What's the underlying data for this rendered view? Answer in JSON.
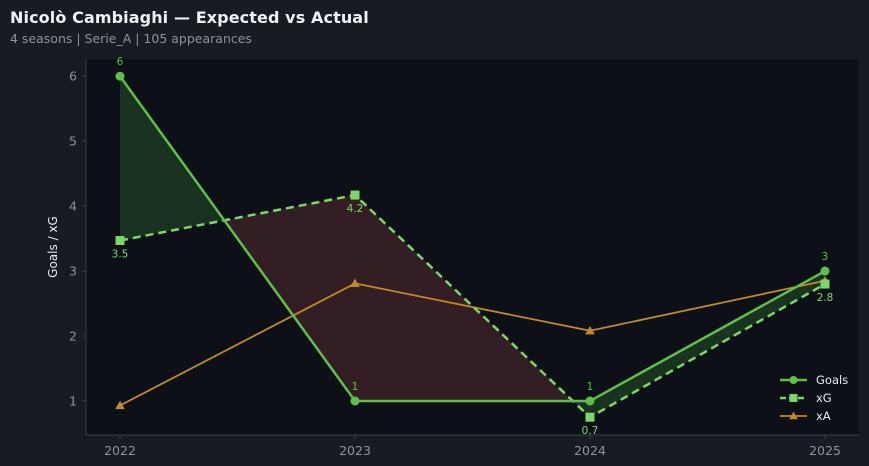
{
  "title": "Nicolò Cambiaghi — Expected vs Actual",
  "subtitle": "4 seasons | Serie_A | 105 appearances",
  "colors": {
    "goals": "#5fbf4a",
    "xg": "#7ed66a",
    "xa": "#c08a2a",
    "over_fill": "#1c3a22",
    "under_fill": "#3a2126",
    "plot_bg": "#0d1117",
    "page_bg": "#171b22"
  },
  "chart_data": {
    "type": "line",
    "x": [
      "2022",
      "2023",
      "2024",
      "2025"
    ],
    "ylabel": "Goals / xG",
    "xlabel": "",
    "ylim": [
      0.5,
      6.25
    ],
    "yticks": [
      1,
      2,
      3,
      4,
      5,
      6
    ],
    "grid": false,
    "legend_position": "bottom-right",
    "series": [
      {
        "name": "Goals",
        "values": [
          6,
          1,
          1,
          3
        ],
        "labels": [
          "6",
          "1",
          "1",
          "3"
        ],
        "marker": "circle",
        "style": "solid"
      },
      {
        "name": "xG",
        "values": [
          3.47,
          4.17,
          0.75,
          2.8
        ],
        "labels": [
          "3.5",
          "4.2",
          "0.7",
          "2.8"
        ],
        "marker": "square",
        "style": "dashed"
      },
      {
        "name": "xA",
        "values": [
          0.93,
          2.81,
          2.08,
          2.85
        ],
        "marker": "triangle",
        "style": "solid"
      }
    ]
  }
}
